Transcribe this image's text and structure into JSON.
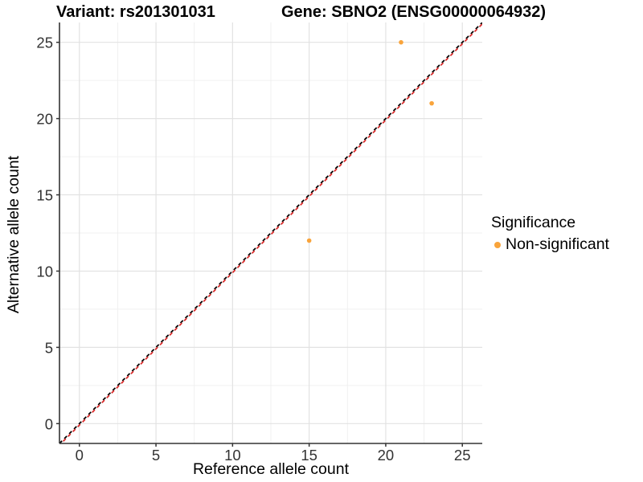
{
  "chart_data": {
    "type": "scatter",
    "title_left": "Variant: rs201301031",
    "title_right": "Gene: SBNO2 (ENSG00000064932)",
    "xlabel": "Reference allele count",
    "ylabel": "Alternative allele count",
    "xlim": [
      -1.3,
      26.3
    ],
    "ylim": [
      -1.3,
      26.3
    ],
    "x_ticks": [
      0,
      5,
      10,
      15,
      20,
      25
    ],
    "y_ticks": [
      0,
      5,
      10,
      15,
      20,
      25
    ],
    "minor_ticks": [
      2.5,
      7.5,
      12.5,
      17.5,
      22.5
    ],
    "grid": true,
    "points": [
      {
        "x": 15,
        "y": 12,
        "series": "Non-significant"
      },
      {
        "x": 21,
        "y": 25,
        "series": "Non-significant"
      },
      {
        "x": 23,
        "y": 21,
        "series": "Non-significant"
      }
    ],
    "lines": [
      {
        "name": "identity-line",
        "style": "dashed",
        "slope": 1,
        "intercept": 0,
        "color": "#000000"
      },
      {
        "name": "regression-line",
        "style": "dashed",
        "slope": 1,
        "intercept": -0.1,
        "color": "#D92B2B"
      }
    ],
    "legend": {
      "title": "Significance",
      "position": "right",
      "entries": [
        {
          "label": "Non-significant",
          "color": "#F9A43B"
        }
      ]
    }
  },
  "colors": {
    "point": "#F9A43B",
    "grid_major": "#E2E2E2",
    "grid_minor": "#F0F0F0",
    "axis": "#333333",
    "tick_text": "#333333",
    "text": "#000000"
  }
}
